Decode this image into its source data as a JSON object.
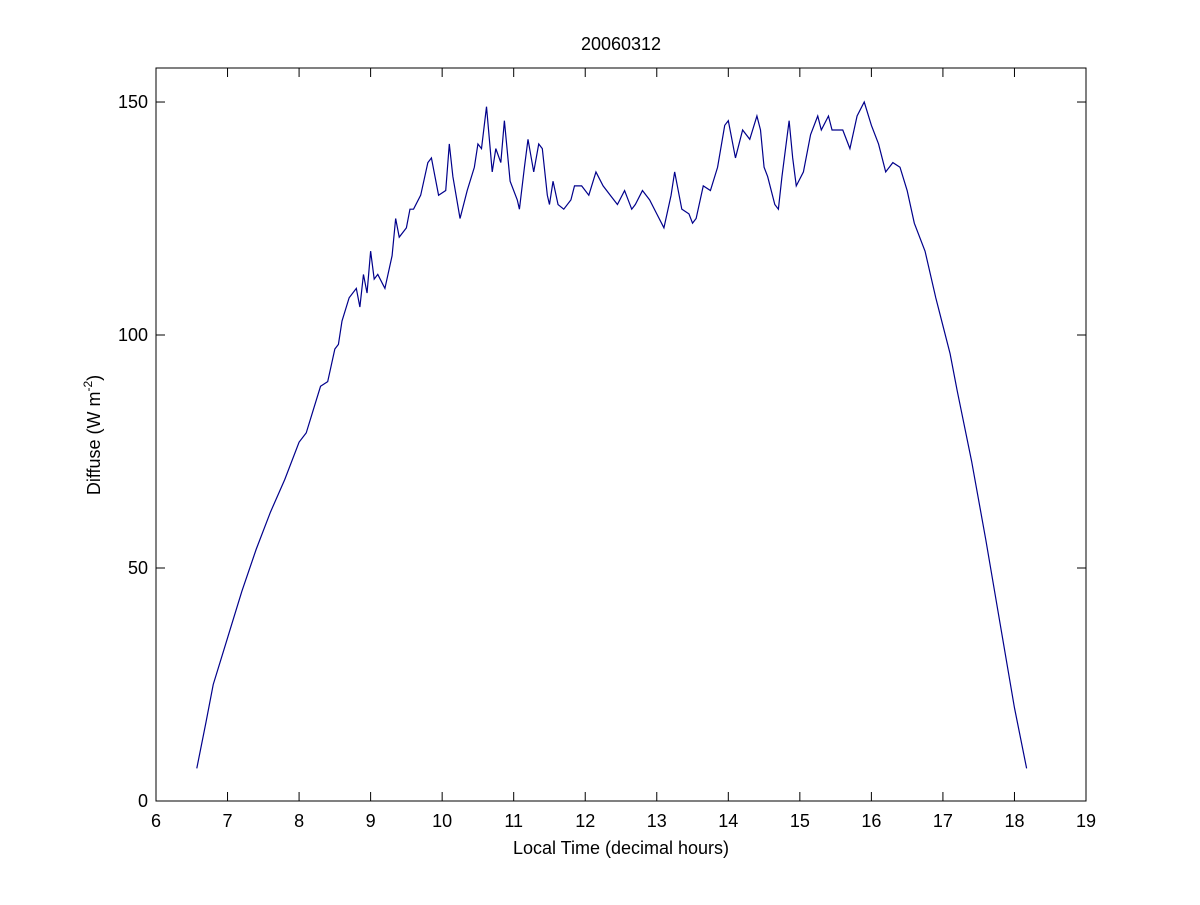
{
  "chart_data": {
    "type": "line",
    "title": "20060312",
    "xlabel": "Local Time (decimal hours)",
    "ylabel_parts": [
      "Diffuse (W m",
      "-2",
      ")"
    ],
    "x": [
      6.57,
      6.7,
      6.8,
      7.0,
      7.2,
      7.4,
      7.6,
      7.8,
      8.0,
      8.1,
      8.2,
      8.3,
      8.4,
      8.5,
      8.55,
      8.6,
      8.7,
      8.8,
      8.85,
      8.9,
      8.95,
      9.0,
      9.05,
      9.1,
      9.2,
      9.3,
      9.35,
      9.4,
      9.5,
      9.55,
      9.6,
      9.7,
      9.8,
      9.85,
      9.9,
      9.95,
      10.05,
      10.1,
      10.15,
      10.25,
      10.35,
      10.45,
      10.5,
      10.55,
      10.62,
      10.7,
      10.75,
      10.82,
      10.87,
      10.95,
      11.05,
      11.08,
      11.15,
      11.2,
      11.28,
      11.35,
      11.4,
      11.47,
      11.5,
      11.55,
      11.62,
      11.7,
      11.8,
      11.85,
      11.95,
      12.05,
      12.15,
      12.25,
      12.35,
      12.45,
      12.55,
      12.65,
      12.7,
      12.8,
      12.9,
      13.0,
      13.1,
      13.2,
      13.25,
      13.35,
      13.45,
      13.5,
      13.55,
      13.65,
      13.75,
      13.85,
      13.95,
      14.0,
      14.1,
      14.2,
      14.3,
      14.4,
      14.45,
      14.5,
      14.55,
      14.65,
      14.7,
      14.75,
      14.85,
      14.9,
      14.95,
      15.05,
      15.15,
      15.25,
      15.3,
      15.4,
      15.45,
      15.6,
      15.7,
      15.8,
      15.9,
      16.0,
      16.1,
      16.2,
      16.3,
      16.4,
      16.5,
      16.6,
      16.75,
      16.9,
      17.0,
      17.1,
      17.2,
      17.4,
      17.6,
      17.8,
      18.0,
      18.17
    ],
    "series": [
      {
        "color": "#00008b",
        "values": [
          7,
          17,
          25,
          35,
          45,
          54,
          62,
          69,
          77,
          79,
          84,
          89,
          90,
          97,
          98,
          103,
          108,
          110,
          106,
          113,
          109,
          118,
          112,
          113,
          110,
          117,
          125,
          121,
          123,
          127,
          127,
          130,
          137,
          138,
          134,
          130,
          131,
          141,
          134,
          125,
          131,
          136,
          141,
          140,
          149,
          135,
          140,
          137,
          146,
          133,
          129,
          127,
          136,
          142,
          135,
          141,
          140,
          130,
          128,
          133,
          128,
          127,
          129,
          132,
          132,
          130,
          135,
          132,
          130,
          128,
          131,
          127,
          128,
          131,
          129,
          126,
          123,
          130,
          135,
          127,
          126,
          124,
          125,
          132,
          131,
          136,
          145,
          146,
          138,
          144,
          142,
          147,
          144,
          136,
          134,
          128,
          127,
          134,
          146,
          138,
          132,
          135,
          143,
          147,
          144,
          147,
          144,
          144,
          140,
          147,
          150,
          145,
          141,
          135,
          137,
          136,
          131,
          124,
          118,
          108,
          102,
          96,
          88,
          73,
          56,
          38,
          20,
          7
        ]
      }
    ],
    "xlim": [
      6,
      19
    ],
    "xticks": [
      6,
      7,
      8,
      9,
      10,
      11,
      12,
      13,
      14,
      15,
      16,
      17,
      18,
      19
    ],
    "ylim": [
      0,
      157.3
    ],
    "yticks": [
      0,
      50,
      100,
      150
    ],
    "grid": false
  }
}
